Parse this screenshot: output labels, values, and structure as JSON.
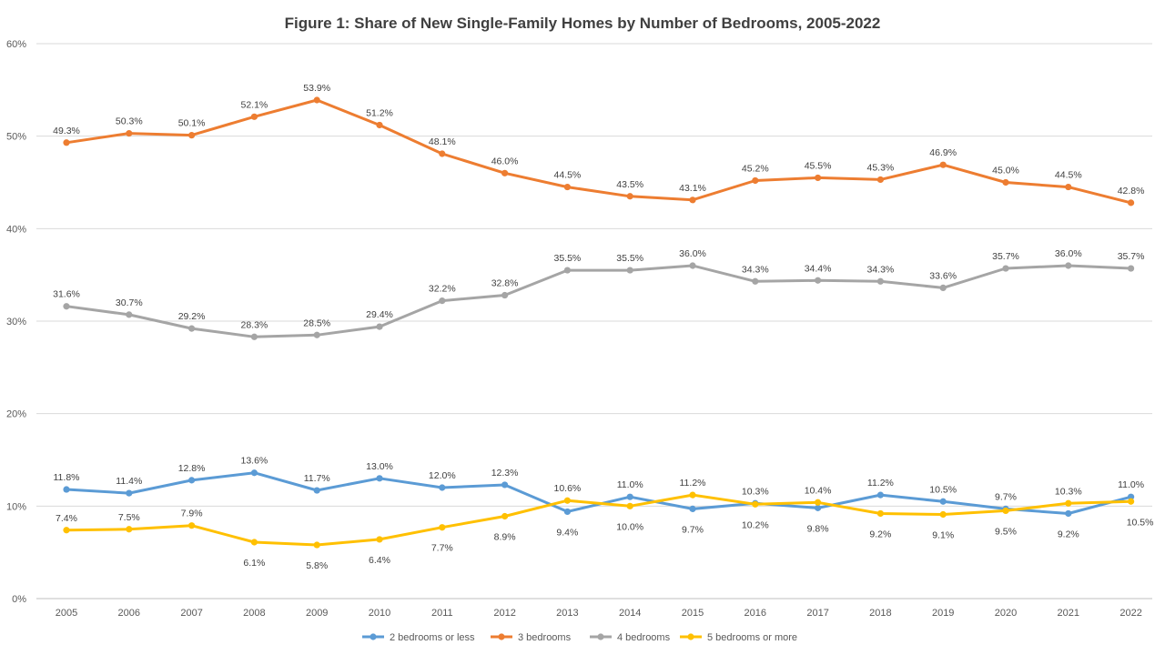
{
  "chart_data": {
    "type": "line",
    "title": "Figure 1: Share of New Single-Family Homes by Number of Bedrooms, 2005-2022",
    "xlabel": "",
    "ylabel": "",
    "x": [
      "2005",
      "2006",
      "2007",
      "2008",
      "2009",
      "2010",
      "2011",
      "2012",
      "2013",
      "2014",
      "2015",
      "2016",
      "2017",
      "2018",
      "2019",
      "2020",
      "2021",
      "2022"
    ],
    "ylim": [
      0,
      60
    ],
    "yticks": [
      0,
      10,
      20,
      30,
      40,
      50,
      60
    ],
    "ytick_labels": [
      "0%",
      "10%",
      "20%",
      "30%",
      "40%",
      "50%",
      "60%"
    ],
    "grid": "horizontal",
    "legend_position": "bottom",
    "series": [
      {
        "name": "2 bedrooms or less",
        "color": "#5B9BD5",
        "values": [
          11.8,
          11.4,
          12.8,
          13.6,
          11.7,
          13.0,
          12.0,
          12.3,
          9.4,
          11.0,
          9.7,
          10.3,
          9.8,
          11.2,
          10.5,
          9.7,
          9.2,
          11.0
        ],
        "labels": [
          "11.8%",
          "11.4%",
          "12.8%",
          "13.6%",
          "11.7%",
          "13.0%",
          "12.0%",
          "12.3%",
          "9.4%",
          "11.0%",
          "9.7%",
          "10.3%",
          "9.8%",
          "11.2%",
          "10.5%",
          "9.7%",
          "9.2%",
          "11.0%"
        ]
      },
      {
        "name": "3 bedrooms",
        "color": "#ED7D31",
        "values": [
          49.3,
          50.3,
          50.1,
          52.1,
          53.9,
          51.2,
          48.1,
          46.0,
          44.5,
          43.5,
          43.1,
          45.2,
          45.5,
          45.3,
          46.9,
          45.0,
          44.5,
          42.8
        ],
        "labels": [
          "49.3%",
          "50.3%",
          "50.1%",
          "52.1%",
          "53.9%",
          "51.2%",
          "48.1%",
          "46.0%",
          "44.5%",
          "43.5%",
          "43.1%",
          "45.2%",
          "45.5%",
          "45.3%",
          "46.9%",
          "45.0%",
          "44.5%",
          "42.8%"
        ]
      },
      {
        "name": "4 bedrooms",
        "color": "#A5A5A5",
        "values": [
          31.6,
          30.7,
          29.2,
          28.3,
          28.5,
          29.4,
          32.2,
          32.8,
          35.5,
          35.5,
          36.0,
          34.3,
          34.4,
          34.3,
          33.6,
          35.7,
          36.0,
          35.7
        ],
        "labels": [
          "31.6%",
          "30.7%",
          "29.2%",
          "28.3%",
          "28.5%",
          "29.4%",
          "32.2%",
          "32.8%",
          "35.5%",
          "35.5%",
          "36.0%",
          "34.3%",
          "34.4%",
          "34.3%",
          "33.6%",
          "35.7%",
          "36.0%",
          "35.7%"
        ]
      },
      {
        "name": "5 bedrooms or more",
        "color": "#FFC000",
        "values": [
          7.4,
          7.5,
          7.9,
          6.1,
          5.8,
          6.4,
          7.7,
          8.9,
          10.6,
          10.0,
          11.2,
          10.2,
          10.4,
          9.2,
          9.1,
          9.5,
          10.3,
          10.5
        ],
        "labels": [
          "7.4%",
          "7.5%",
          "7.9%",
          "6.1%",
          "5.8%",
          "6.4%",
          "7.7%",
          "8.9%",
          "10.6%",
          "10.0%",
          "11.2%",
          "10.2%",
          "10.4%",
          "9.2%",
          "9.1%",
          "9.5%",
          "10.3%",
          "10.5%"
        ]
      }
    ]
  }
}
